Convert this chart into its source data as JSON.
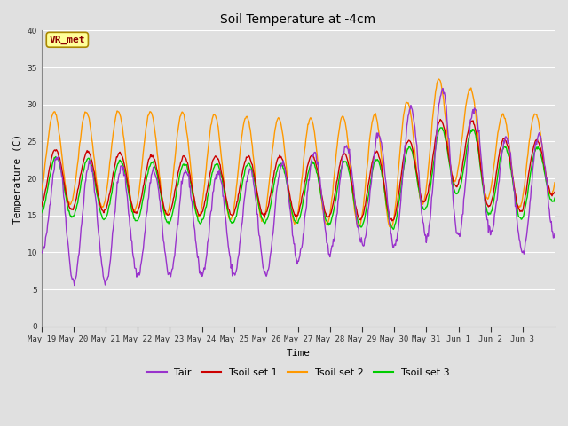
{
  "title": "Soil Temperature at -4cm",
  "xlabel": "Time",
  "ylabel": "Temperature (C)",
  "ylim": [
    0,
    40
  ],
  "yticks": [
    0,
    5,
    10,
    15,
    20,
    25,
    30,
    35,
    40
  ],
  "annotation_text": "VR_met",
  "annotation_color": "#8B0000",
  "annotation_bg": "#FFFF99",
  "line_colors": {
    "Tair": "#9933CC",
    "Tsoil set 1": "#CC0000",
    "Tsoil set 2": "#FF9900",
    "Tsoil set 3": "#00CC00"
  },
  "legend_colors": [
    "#9933CC",
    "#CC0000",
    "#FF9900",
    "#00CC00"
  ],
  "legend_labels": [
    "Tair",
    "Tsoil set 1",
    "Tsoil set 2",
    "Tsoil set 3"
  ],
  "bg_color": "#E0E0E0",
  "font_family": "monospace",
  "tick_labels": [
    "May 19",
    "May 20",
    "May 21",
    "May 22",
    "May 23",
    "May 24",
    "May 25",
    "May 26",
    "May 27",
    "May 28",
    "May 29",
    "May 30",
    "May 31",
    "Jun 1",
    "Jun 2",
    "Jun 3"
  ]
}
